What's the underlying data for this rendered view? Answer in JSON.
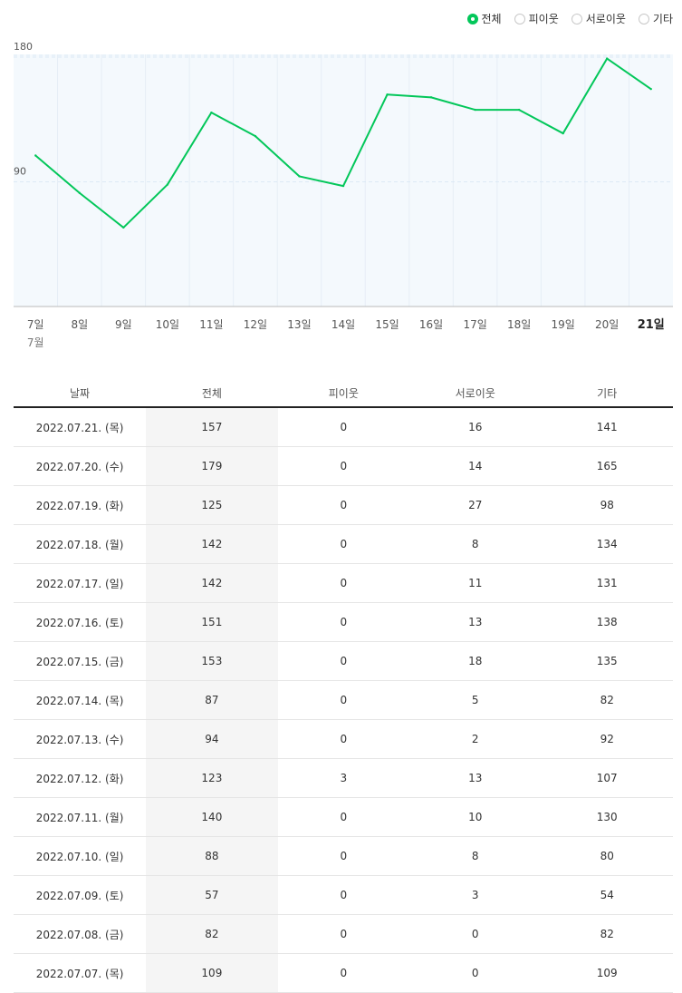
{
  "legend": {
    "options": [
      {
        "label": "전체",
        "selected": true
      },
      {
        "label": "피이웃",
        "selected": false
      },
      {
        "label": "서로이웃",
        "selected": false
      },
      {
        "label": "기타",
        "selected": false
      }
    ]
  },
  "colors": {
    "line": "#03c75a",
    "plot_bg": "#f4f9fd",
    "grid": "#dce9f5"
  },
  "chart_data": {
    "type": "line",
    "categories": [
      "7일",
      "8일",
      "9일",
      "10일",
      "11일",
      "12일",
      "13일",
      "14일",
      "15일",
      "16일",
      "17일",
      "18일",
      "19일",
      "20일",
      "21일"
    ],
    "month_label": "7월",
    "highlight_category": "21일",
    "series": [
      {
        "values": [
          109,
          82,
          57,
          88,
          140,
          123,
          94,
          87,
          153,
          151,
          142,
          142,
          125,
          179,
          157
        ]
      }
    ],
    "yticks": [
      90,
      180
    ],
    "ylim": [
      0,
      182
    ],
    "grid": true
  },
  "table": {
    "headers": [
      "날짜",
      "전체",
      "피이웃",
      "서로이웃",
      "기타"
    ],
    "rows": [
      [
        "2022.07.21. (목)",
        "157",
        "0",
        "16",
        "141"
      ],
      [
        "2022.07.20. (수)",
        "179",
        "0",
        "14",
        "165"
      ],
      [
        "2022.07.19. (화)",
        "125",
        "0",
        "27",
        "98"
      ],
      [
        "2022.07.18. (월)",
        "142",
        "0",
        "8",
        "134"
      ],
      [
        "2022.07.17. (일)",
        "142",
        "0",
        "11",
        "131"
      ],
      [
        "2022.07.16. (토)",
        "151",
        "0",
        "13",
        "138"
      ],
      [
        "2022.07.15. (금)",
        "153",
        "0",
        "18",
        "135"
      ],
      [
        "2022.07.14. (목)",
        "87",
        "0",
        "5",
        "82"
      ],
      [
        "2022.07.13. (수)",
        "94",
        "0",
        "2",
        "92"
      ],
      [
        "2022.07.12. (화)",
        "123",
        "3",
        "13",
        "107"
      ],
      [
        "2022.07.11. (월)",
        "140",
        "0",
        "10",
        "130"
      ],
      [
        "2022.07.10. (일)",
        "88",
        "0",
        "8",
        "80"
      ],
      [
        "2022.07.09. (토)",
        "57",
        "0",
        "3",
        "54"
      ],
      [
        "2022.07.08. (금)",
        "82",
        "0",
        "0",
        "82"
      ],
      [
        "2022.07.07. (목)",
        "109",
        "0",
        "0",
        "109"
      ]
    ]
  }
}
